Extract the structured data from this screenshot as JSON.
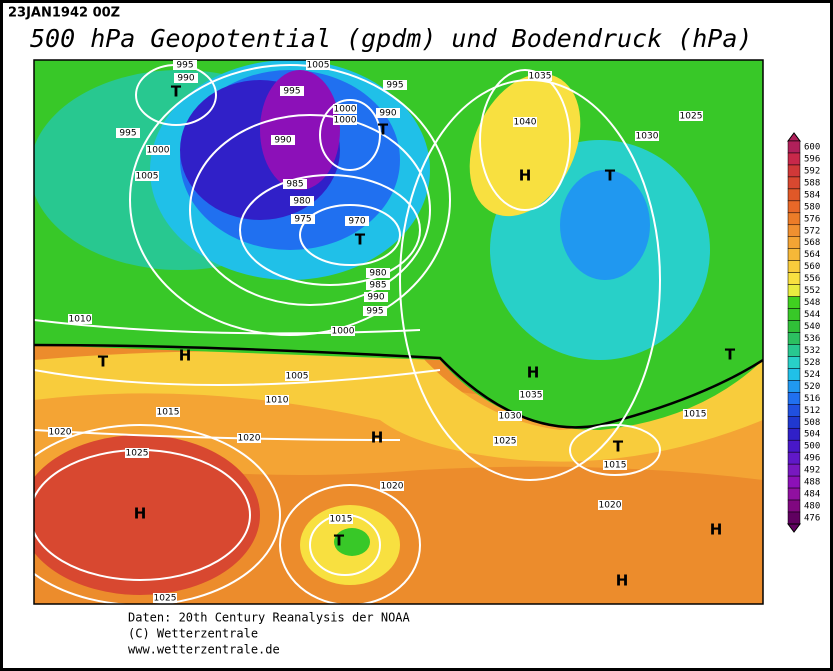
{
  "header": {
    "date": "23JAN1942 00Z",
    "title": "500 hPa Geopotential (gpdm) und Bodendruck (hPa)"
  },
  "colorbar": {
    "ticks": [
      600,
      596,
      592,
      588,
      584,
      580,
      576,
      572,
      568,
      564,
      560,
      556,
      552,
      548,
      544,
      540,
      536,
      532,
      528,
      524,
      520,
      516,
      512,
      508,
      504,
      500,
      496,
      492,
      488,
      484,
      480,
      476
    ],
    "colors": [
      "#b0205a",
      "#c8284a",
      "#d03838",
      "#d84830",
      "#e05828",
      "#e86828",
      "#ec7c28",
      "#f09030",
      "#f4a434",
      "#f6b838",
      "#f8cc3c",
      "#f8e040",
      "#e8ec40",
      "#40d020",
      "#38c828",
      "#30c038",
      "#2cc060",
      "#28c890",
      "#28d0c8",
      "#20c0e8",
      "#2098f0",
      "#2070f0",
      "#2050e0",
      "#2038d0",
      "#3020c8",
      "#4818c8",
      "#6018c8",
      "#7818c0",
      "#8c10b8",
      "#9010a0",
      "#800880",
      "#600060"
    ]
  },
  "isobars": [
    "995",
    "990",
    "1005",
    "995",
    "995",
    "1000",
    "1000",
    "990",
    "995",
    "1000",
    "1005",
    "990",
    "985",
    "980",
    "975",
    "970",
    "980",
    "985",
    "990",
    "995",
    "1010",
    "1000",
    "1005",
    "1010",
    "1015",
    "1020",
    "1020",
    "1025",
    "1020",
    "1015",
    "1025",
    "1035",
    "1040",
    "1030",
    "1025",
    "1035",
    "1030",
    "1025",
    "1015",
    "1015",
    "1020"
  ],
  "centers": [
    "T",
    "T",
    "T",
    "T",
    "H",
    "H",
    "T",
    "H",
    "H",
    "T",
    "T",
    "H",
    "T",
    "H",
    "H"
  ],
  "footer": [
    "Daten: 20th Century Reanalysis der NOAA",
    "(C) Wetterzentrale",
    "www.wetterzentrale.de"
  ]
}
